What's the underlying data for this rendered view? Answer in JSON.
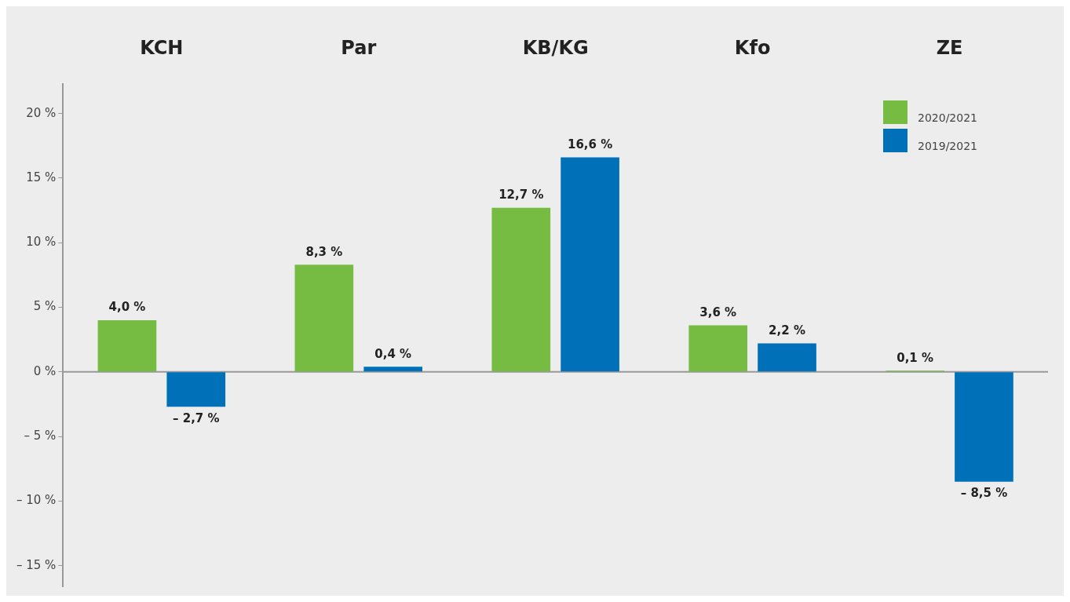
{
  "chart_data": {
    "type": "bar",
    "categories": [
      "KCH",
      "Par",
      "KB/KG",
      "Kfo",
      "ZE"
    ],
    "series": [
      {
        "name": "2020/2021",
        "color": "#76bc43",
        "values": [
          4.0,
          8.3,
          12.7,
          3.6,
          0.1
        ],
        "value_labels": [
          "4,0 %",
          "8,3 %",
          "12,7 %",
          "3,6 %",
          "0,1 %"
        ]
      },
      {
        "name": "2019/2021",
        "color": "#0070b8",
        "values": [
          -2.7,
          0.4,
          16.6,
          2.2,
          -8.5
        ],
        "value_labels": [
          "– 2,7 %",
          "0,4 %",
          "16,6 %",
          "2,2 %",
          "– 8,5 %"
        ]
      }
    ],
    "ylim": [
      -16.6,
      22.3
    ],
    "yticks": [
      {
        "value": -15,
        "label": "– 15 %"
      },
      {
        "value": -10,
        "label": "– 10 %"
      },
      {
        "value": -5,
        "label": "– 5 %"
      },
      {
        "value": 0,
        "label": "0 %"
      },
      {
        "value": 5,
        "label": "5 %"
      },
      {
        "value": 10,
        "label": "10 %"
      },
      {
        "value": 15,
        "label": "15 %"
      },
      {
        "value": 20,
        "label": "20 %"
      }
    ],
    "legend": "top right"
  }
}
